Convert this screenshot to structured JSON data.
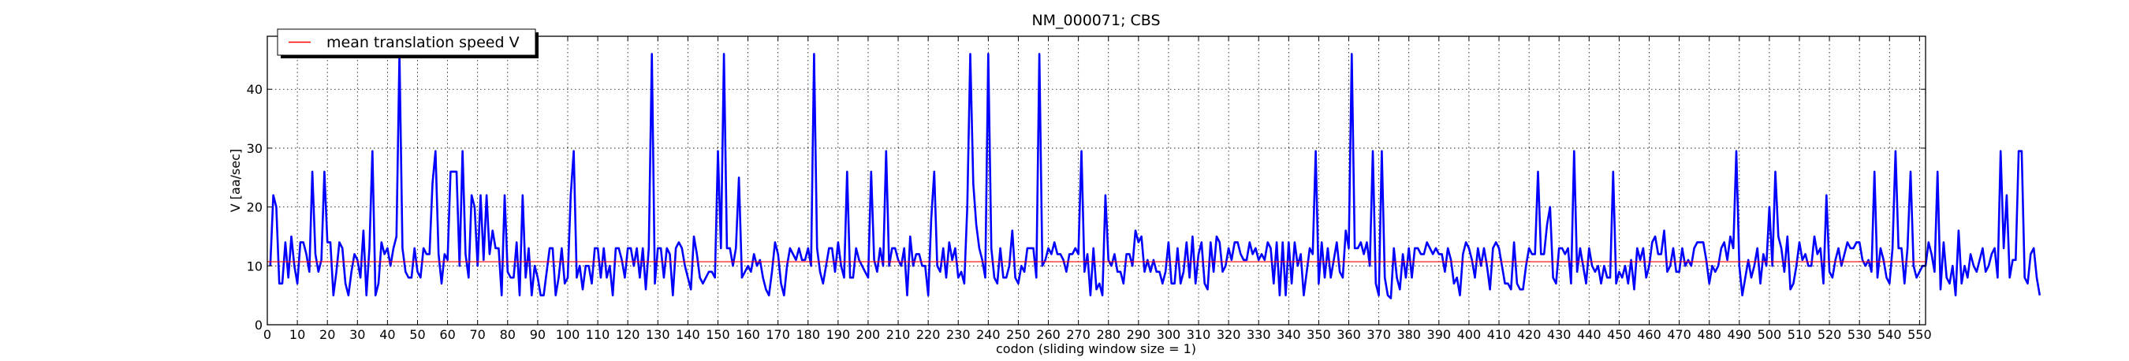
{
  "chart_data": {
    "type": "line",
    "title": "NM_000071; CBS",
    "xlabel": "codon  (sliding window size = 1)",
    "ylabel": "V [aa/sec]",
    "xlim": [
      0,
      552
    ],
    "ylim": [
      0,
      49
    ],
    "xticks": [
      0,
      10,
      20,
      30,
      40,
      50,
      60,
      70,
      80,
      90,
      100,
      110,
      120,
      130,
      140,
      150,
      160,
      170,
      180,
      190,
      200,
      210,
      220,
      230,
      240,
      250,
      260,
      270,
      280,
      290,
      300,
      310,
      320,
      330,
      340,
      350,
      360,
      370,
      380,
      390,
      400,
      410,
      420,
      430,
      440,
      450,
      460,
      470,
      480,
      490,
      500,
      510,
      520,
      530,
      540,
      550
    ],
    "xtick_labels": [
      "0",
      "10",
      "20",
      "30",
      "40",
      "50",
      "60",
      "70",
      "80",
      "90",
      "100",
      "110",
      "120",
      "130",
      "140",
      "150",
      "160",
      "170",
      "180",
      "190",
      "200",
      "210",
      "220",
      "230",
      "240",
      "250",
      "260",
      "270",
      "280",
      "290",
      "300",
      "310",
      "320",
      "330",
      "340",
      "350",
      "360",
      "370",
      "380",
      "390",
      "400",
      "410",
      "420",
      "430",
      "440",
      "450",
      "460",
      "470",
      "480",
      "490",
      "500",
      "510",
      "520",
      "530",
      "540",
      "550"
    ],
    "yticks": [
      0,
      10,
      20,
      30,
      40
    ],
    "ytick_labels": [
      "0",
      "10",
      "20",
      "30",
      "40"
    ],
    "grid": true,
    "legend": {
      "placement": "top-left",
      "entries": [
        {
          "label": "mean translation speed V",
          "color": "#ff0000"
        }
      ]
    },
    "series": [
      {
        "kind": "line",
        "color": "#0000ff",
        "x_start": 1,
        "values": [
          10,
          22,
          20,
          7,
          7,
          14,
          8,
          15,
          10,
          7,
          14,
          14,
          12,
          9,
          26,
          12,
          9,
          11,
          26,
          14,
          14,
          5,
          9,
          14,
          13,
          7,
          5,
          9,
          12,
          11,
          8,
          16,
          5,
          13,
          29.5,
          5,
          7,
          14,
          12,
          13,
          10,
          13,
          15,
          46,
          13,
          9,
          8,
          8,
          13,
          9,
          8,
          13,
          12,
          12,
          24,
          29.5,
          12,
          7,
          12,
          11,
          26,
          26,
          26,
          10,
          29.5,
          12,
          8,
          22,
          20,
          10,
          22,
          11,
          22,
          12,
          16,
          13,
          13,
          5,
          22,
          9,
          8,
          8,
          14,
          5,
          22,
          8,
          13,
          5,
          10,
          8,
          5,
          5,
          9,
          13,
          13,
          5,
          8,
          13,
          7,
          8,
          22,
          29.5,
          8,
          10,
          6,
          10,
          10,
          7,
          13,
          13,
          8,
          13,
          8,
          10,
          5,
          13,
          13,
          11,
          8,
          13,
          13,
          10,
          13,
          8,
          13,
          6,
          13,
          46,
          7,
          13,
          13,
          8,
          13,
          12,
          5,
          13,
          14,
          13,
          10,
          8,
          6,
          15,
          12,
          8,
          7,
          8,
          9,
          9,
          8,
          29.5,
          13,
          46,
          13,
          13,
          10,
          13,
          25,
          8,
          9,
          10,
          9,
          12,
          10,
          11,
          8,
          6,
          5,
          9,
          14,
          12,
          7,
          5,
          10,
          13,
          12,
          11,
          13,
          11,
          11,
          13,
          10,
          46,
          13,
          9,
          7,
          10,
          13,
          13,
          9,
          14,
          10,
          8,
          26,
          8,
          8,
          13,
          11,
          10,
          9,
          8,
          26,
          11,
          9,
          13,
          10,
          29.5,
          10,
          13,
          13,
          11,
          10,
          13,
          5,
          15,
          10,
          12,
          12,
          10,
          10,
          5,
          18,
          26,
          10,
          9,
          13,
          8,
          14,
          11,
          13,
          8,
          9,
          7,
          20,
          46,
          24,
          17,
          13,
          11,
          8,
          46,
          13,
          8,
          7,
          13,
          8,
          8,
          10,
          16,
          8,
          7,
          10,
          9,
          13,
          13,
          13,
          8,
          46,
          10,
          11,
          13,
          12,
          14,
          12,
          12,
          11,
          9,
          12,
          12,
          13,
          12,
          29.5,
          9,
          12,
          5,
          13,
          6,
          7,
          5,
          22,
          11,
          10,
          12,
          9,
          9,
          7,
          12,
          12,
          10,
          16,
          14,
          15,
          9,
          11,
          9,
          11,
          9,
          9,
          7,
          9,
          14,
          7,
          7,
          13,
          7,
          9,
          14,
          8,
          15,
          7,
          12,
          14,
          7,
          6,
          14,
          9,
          15,
          14,
          9,
          10,
          13,
          11,
          14,
          14,
          12,
          11,
          11,
          14,
          12,
          13,
          11,
          12,
          11,
          14,
          13,
          7,
          14,
          5,
          14,
          5,
          14,
          7,
          14,
          10,
          12,
          5,
          9,
          13,
          12,
          29.5,
          7,
          14,
          8,
          13,
          8,
          11,
          14,
          9,
          8,
          16,
          13,
          46,
          13,
          13,
          14,
          12,
          14,
          10,
          29.5,
          7,
          5,
          29.5,
          8,
          5,
          4.5,
          13,
          8,
          6,
          12,
          8,
          13,
          8,
          13,
          13,
          12,
          12,
          14,
          13,
          12,
          13,
          12,
          12,
          9,
          13,
          11,
          7,
          8,
          5,
          12,
          14,
          13,
          11,
          8,
          13,
          10,
          13,
          10,
          6,
          13,
          14,
          13,
          10,
          7,
          7,
          6,
          14,
          7,
          6,
          6,
          10,
          13,
          12,
          12,
          26,
          12,
          12,
          17,
          20,
          8,
          7,
          13,
          13,
          12,
          13,
          7,
          29.5,
          9,
          13,
          10,
          7,
          13,
          10,
          9,
          10,
          7,
          10,
          8,
          8,
          26,
          7,
          9,
          8,
          10,
          7,
          11,
          6,
          13,
          11,
          13,
          8,
          10,
          14,
          15,
          12,
          12,
          16,
          9,
          10,
          13,
          9,
          9,
          13,
          10,
          11,
          10,
          13,
          14,
          14,
          14,
          11,
          7,
          10,
          9,
          10,
          13,
          14,
          11,
          15,
          13,
          29.5,
          10,
          5,
          8,
          11,
          8,
          10,
          13,
          7,
          12,
          10,
          20,
          10,
          26,
          15,
          13,
          9,
          15,
          6,
          7,
          10,
          14,
          11,
          12,
          10,
          10,
          15,
          12,
          13,
          7,
          22,
          9,
          8,
          11,
          13,
          10,
          12,
          14,
          13,
          13,
          14,
          14,
          11,
          10,
          11,
          9,
          26,
          8,
          13,
          11,
          8,
          7,
          13,
          29.5,
          13,
          13,
          7,
          13,
          26,
          10,
          8,
          9,
          10,
          10,
          14,
          12,
          9,
          26,
          6,
          14,
          8,
          7,
          10,
          5,
          16,
          7,
          10,
          8,
          12,
          10,
          9,
          11,
          13,
          9,
          10,
          12,
          13,
          8,
          29.5,
          13,
          22,
          8,
          11,
          11,
          29.5,
          29.5,
          8,
          7,
          12,
          13,
          8,
          5
        ]
      },
      {
        "kind": "hline",
        "name": "mean translation speed V",
        "color": "#ff0000",
        "y": 10.7
      }
    ]
  }
}
